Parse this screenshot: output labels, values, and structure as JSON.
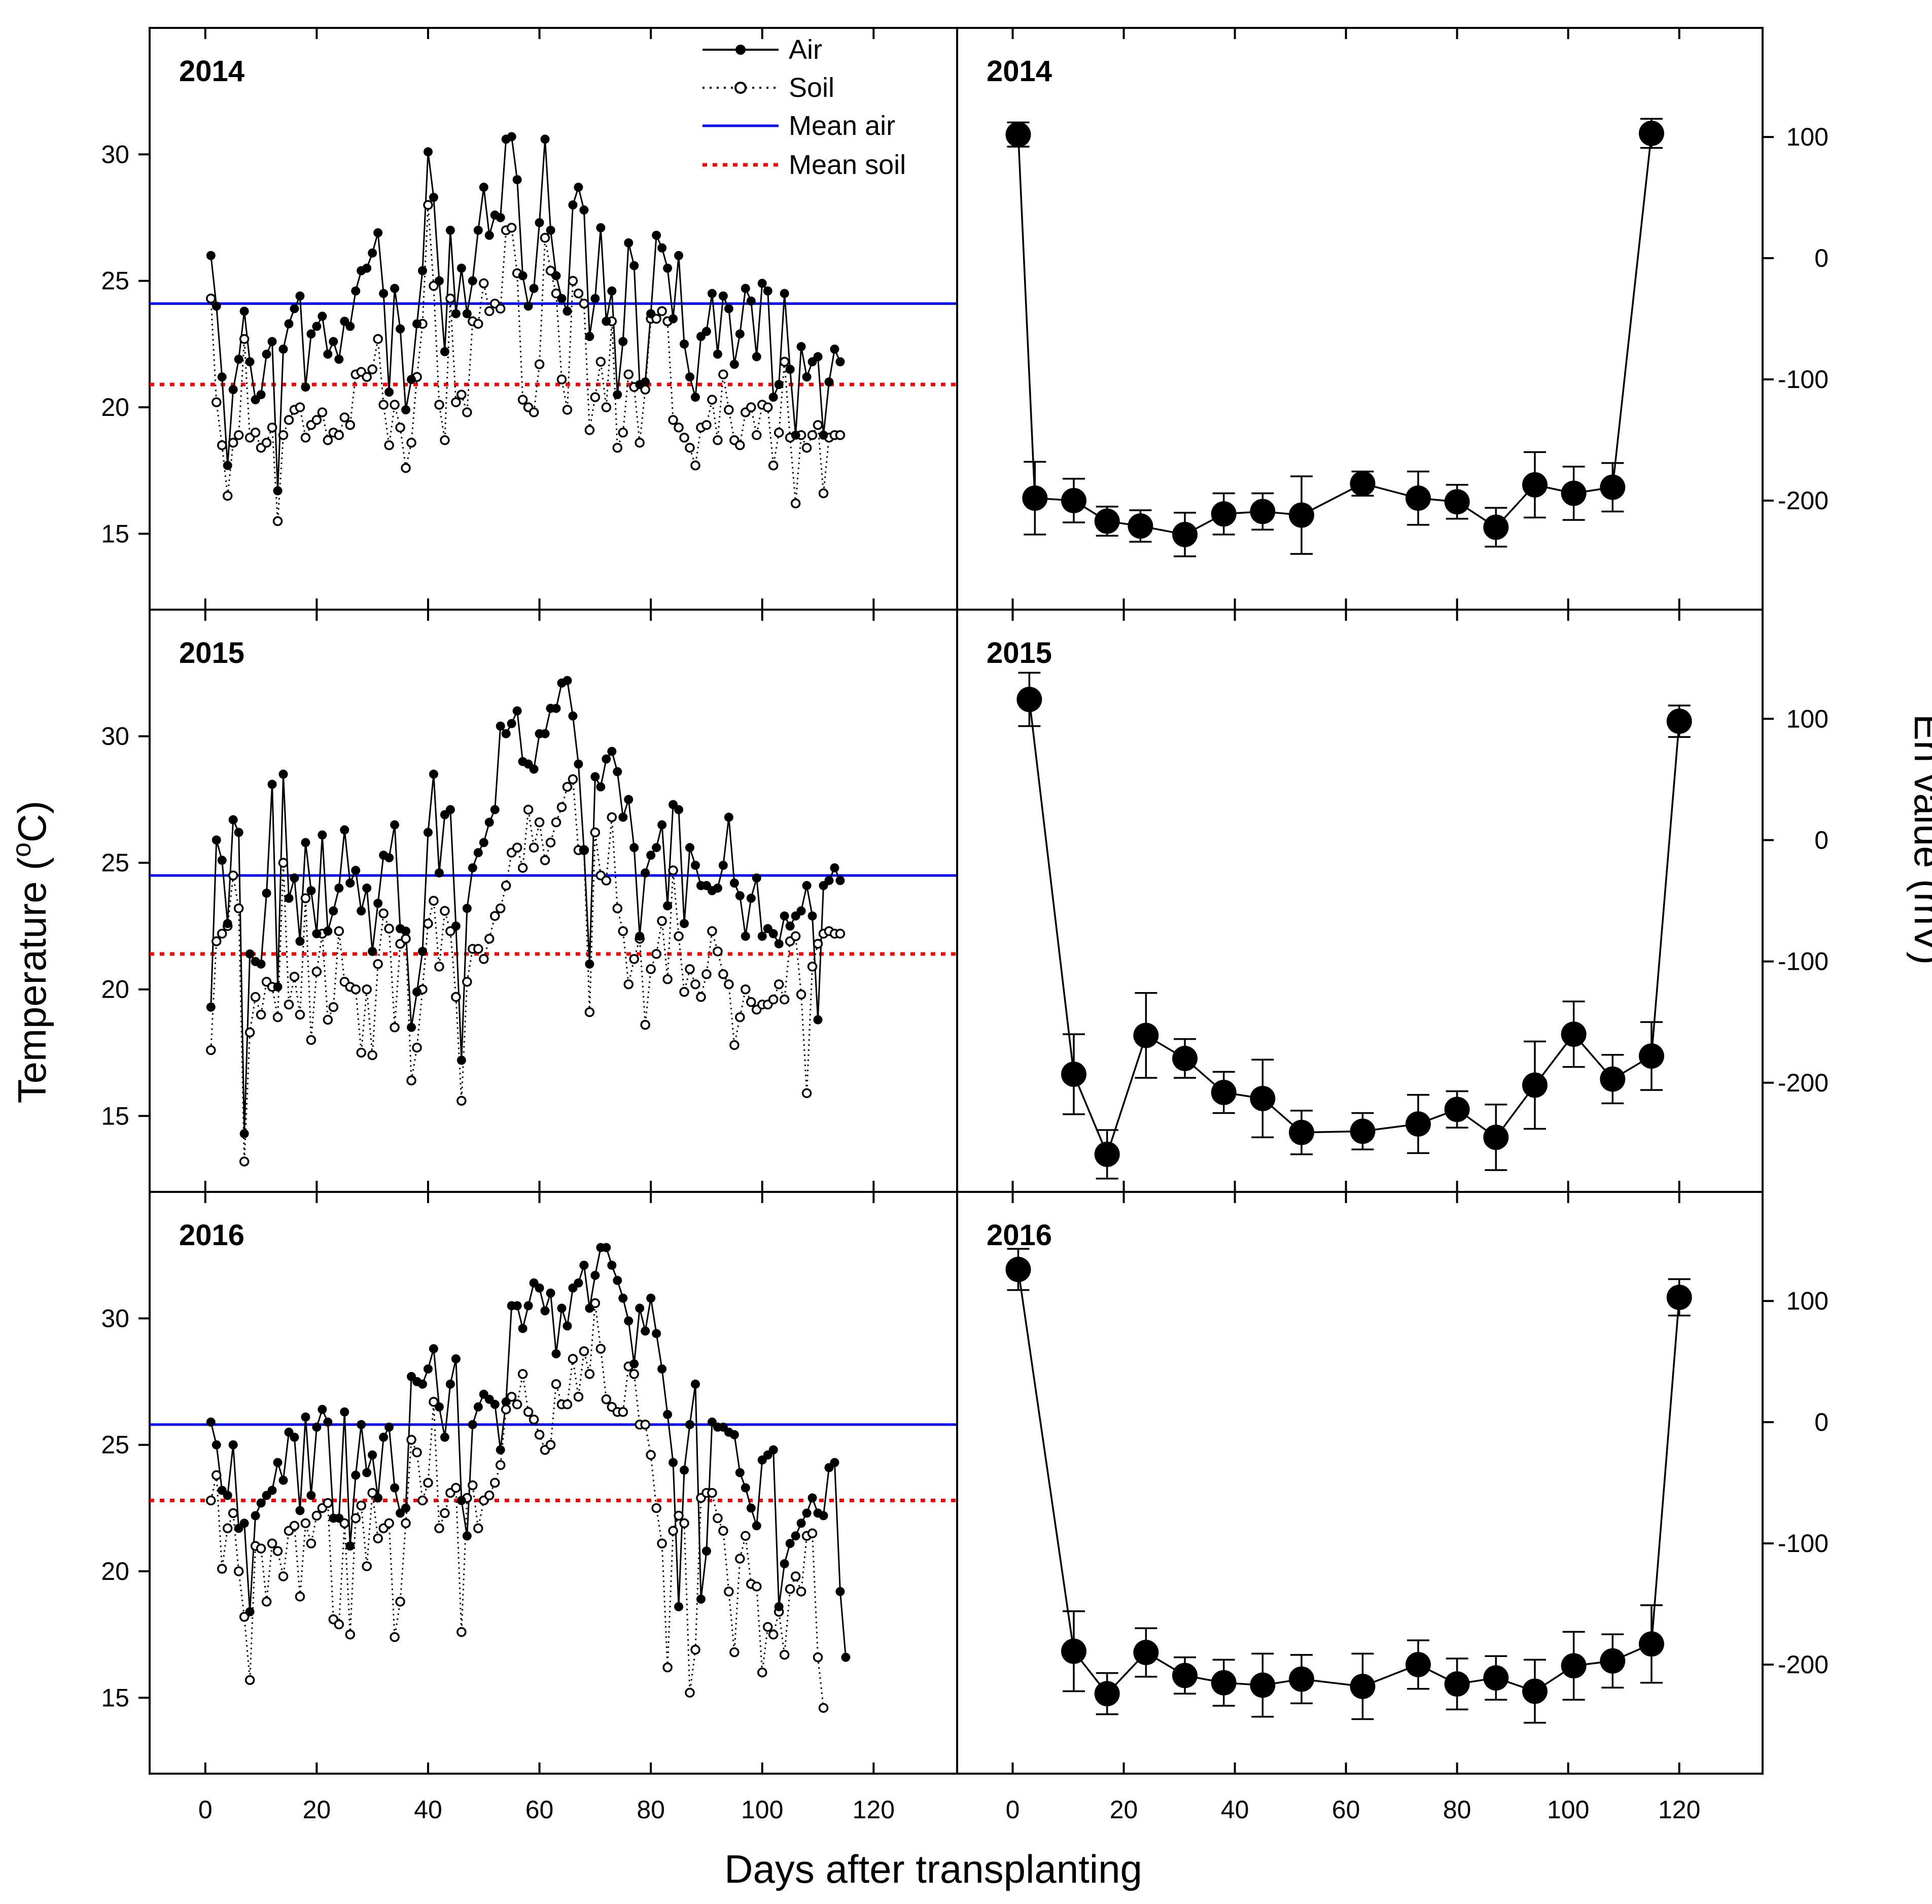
{
  "figure": {
    "x_axis_title": "Days after transplanting",
    "y_left_title": "Temperature (",
    "y_left_title_degree": "o",
    "y_left_title_unit": "C)",
    "y_right_title": "Eh value (mV)"
  },
  "legend": {
    "air": "Air",
    "soil": "Soil",
    "mean_air": "Mean air",
    "mean_soil": "Mean soil"
  },
  "colors": {
    "mean_air": "#0000ff",
    "mean_soil": "#ff0000",
    "series": "#000000"
  },
  "chart_data": [
    {
      "type": "line",
      "panel": "temperature-2014",
      "year_label": "2014",
      "xlim": [
        -10,
        135
      ],
      "ylim": [
        12,
        35
      ],
      "xticks": [
        0,
        20,
        40,
        60,
        80,
        100,
        120
      ],
      "yticks": [
        15,
        20,
        25,
        30
      ],
      "mean_air": 24.1,
      "mean_soil": 20.9,
      "air": [
        26.0,
        24.0,
        21.2,
        17.7,
        20.7,
        21.9,
        23.8,
        21.8,
        20.3,
        20.5,
        22.1,
        22.6,
        16.7,
        22.3,
        23.3,
        23.9,
        24.4,
        20.8,
        22.9,
        23.2,
        23.6,
        22.1,
        22.6,
        21.9,
        23.4,
        23.2,
        24.6,
        25.4,
        25.5,
        26.1,
        26.9,
        24.5,
        20.6,
        24.7,
        23.1,
        19.9,
        21.1,
        23.3,
        25.4,
        30.1,
        28.3,
        25.0,
        22.2,
        27.0,
        23.7,
        25.5,
        23.7,
        25.0,
        27.0,
        28.7,
        26.8,
        27.6,
        27.5,
        30.6,
        30.7,
        29.0,
        25.2,
        24.0,
        24.7,
        27.3,
        30.6,
        27.0,
        25.2,
        24.3,
        23.8,
        28.0,
        28.7,
        27.8,
        22.8,
        24.3,
        27.1,
        23.4,
        24.6,
        20.5,
        22.6,
        26.5,
        25.6,
        20.9,
        21.0,
        23.7,
        26.8,
        26.3,
        25.5,
        23.5,
        26.0,
        22.5,
        21.2,
        20.4,
        22.8,
        23.0,
        24.5,
        22.1,
        24.4,
        23.9,
        21.7,
        22.9,
        24.7,
        24.2,
        22.0,
        24.9,
        24.6,
        20.4,
        20.9,
        24.5,
        21.5,
        18.9,
        22.4,
        21.2,
        21.8,
        22.0,
        18.9,
        21.0,
        22.3,
        21.8
      ],
      "soil": [
        24.3,
        20.2,
        18.5,
        16.5,
        18.6,
        18.9,
        22.7,
        18.8,
        19.0,
        18.4,
        18.6,
        19.2,
        15.5,
        18.9,
        19.5,
        19.9,
        20.0,
        18.8,
        19.3,
        19.5,
        19.8,
        18.7,
        19.0,
        18.9,
        19.6,
        19.3,
        21.3,
        21.4,
        21.2,
        21.5,
        22.7,
        20.1,
        18.5,
        20.1,
        19.2,
        17.6,
        18.6,
        21.2,
        23.3,
        28.0,
        24.8,
        20.1,
        18.7,
        24.3,
        20.2,
        20.5,
        19.8,
        23.4,
        23.3,
        24.9,
        23.8,
        24.1,
        23.9,
        27.0,
        27.1,
        25.3,
        20.3,
        20.0,
        19.8,
        21.7,
        26.7,
        25.4,
        24.5,
        21.1,
        19.9,
        25.0,
        24.5,
        24.1,
        19.1,
        20.4,
        21.8,
        20.0,
        23.4,
        18.4,
        19.0,
        21.3,
        20.8,
        18.6,
        20.7,
        23.5,
        23.5,
        23.8,
        23.4,
        19.5,
        19.2,
        18.8,
        18.4,
        17.7,
        19.2,
        19.3,
        20.3,
        18.7,
        21.3,
        19.9,
        18.7,
        18.5,
        19.8,
        20.0,
        18.9,
        20.1,
        20.0,
        17.7,
        19.0,
        21.8,
        18.8,
        16.2,
        18.9,
        18.4,
        18.9,
        19.3,
        16.6,
        18.8,
        18.9,
        18.9
      ]
    },
    {
      "type": "line",
      "panel": "temperature-2015",
      "year_label": "2015",
      "xlim": [
        -10,
        135
      ],
      "ylim": [
        12,
        35
      ],
      "xticks": [
        0,
        20,
        40,
        60,
        80,
        100,
        120
      ],
      "yticks": [
        15,
        20,
        25,
        30
      ],
      "mean_air": 24.5,
      "mean_soil": 21.4,
      "air": [
        19.3,
        25.9,
        25.1,
        22.6,
        26.7,
        26.2,
        14.3,
        21.4,
        21.1,
        21.0,
        23.8,
        28.1,
        20.1,
        28.5,
        23.6,
        24.4,
        21.9,
        25.8,
        23.9,
        22.2,
        26.1,
        22.3,
        23.1,
        24.0,
        26.3,
        24.2,
        24.7,
        23.1,
        24.0,
        21.5,
        23.4,
        25.3,
        25.2,
        26.5,
        22.4,
        22.3,
        18.5,
        19.9,
        21.5,
        26.2,
        28.5,
        24.6,
        26.9,
        27.1,
        22.5,
        17.2,
        23.2,
        24.8,
        25.4,
        25.8,
        26.6,
        27.1,
        30.4,
        30.1,
        30.5,
        31.0,
        29.0,
        28.9,
        28.7,
        30.1,
        30.1,
        31.1,
        31.1,
        32.1,
        32.2,
        30.8,
        28.9,
        25.5,
        21.0,
        28.4,
        28.0,
        29.1,
        29.4,
        28.6,
        26.8,
        27.5,
        25.6,
        22.1,
        24.6,
        25.3,
        25.6,
        26.5,
        23.3,
        27.3,
        27.1,
        22.6,
        25.6,
        24.9,
        24.1,
        24.1,
        23.9,
        24.0,
        24.9,
        26.8,
        24.2,
        23.7,
        22.1,
        23.6,
        24.4,
        22.1,
        22.4,
        22.2,
        21.8,
        22.9,
        22.5,
        22.9,
        23.1,
        24.1,
        22.9,
        18.8,
        24.1,
        24.3,
        24.8,
        24.3
      ],
      "soil": [
        17.6,
        21.9,
        22.2,
        22.5,
        24.5,
        23.2,
        13.2,
        18.3,
        19.7,
        19.0,
        20.3,
        20.1,
        18.9,
        25.0,
        19.4,
        20.5,
        19.0,
        23.6,
        18.0,
        20.7,
        22.2,
        18.8,
        19.3,
        22.3,
        20.3,
        20.1,
        20.0,
        17.5,
        20.0,
        17.4,
        21.0,
        23.0,
        22.4,
        18.5,
        21.8,
        22.0,
        16.4,
        17.7,
        20.0,
        22.6,
        23.5,
        20.9,
        23.1,
        22.3,
        19.7,
        15.6,
        20.3,
        21.6,
        21.6,
        21.2,
        22.0,
        22.9,
        23.2,
        24.1,
        25.4,
        25.6,
        24.8,
        27.1,
        25.6,
        26.6,
        25.1,
        25.8,
        26.6,
        27.2,
        28.0,
        28.3,
        25.5,
        25.5,
        19.1,
        26.2,
        24.5,
        24.3,
        26.8,
        23.2,
        22.3,
        20.2,
        21.2,
        22.0,
        18.6,
        20.8,
        21.4,
        22.7,
        20.4,
        24.7,
        22.1,
        19.9,
        20.8,
        20.2,
        19.7,
        20.6,
        22.3,
        21.5,
        20.6,
        20.2,
        17.8,
        18.9,
        20.0,
        19.5,
        19.2,
        19.4,
        19.4,
        19.6,
        20.2,
        19.6,
        21.9,
        22.1,
        19.8,
        15.9,
        20.9,
        21.8,
        22.2,
        22.3,
        22.2,
        22.2
      ],
      "xoffset": 0
    },
    {
      "type": "line",
      "panel": "temperature-2016",
      "year_label": "2016",
      "xlim": [
        -10,
        135
      ],
      "ylim": [
        12,
        35
      ],
      "xticks": [
        0,
        20,
        40,
        60,
        80,
        100,
        120
      ],
      "yticks": [
        15,
        20,
        25,
        30
      ],
      "mean_air": 25.8,
      "mean_soil": 22.8,
      "air": [
        25.9,
        25.0,
        23.2,
        23.0,
        25.0,
        21.7,
        21.9,
        18.4,
        22.2,
        22.7,
        23.0,
        23.2,
        24.3,
        23.6,
        25.5,
        25.3,
        22.4,
        26.1,
        23.0,
        25.7,
        26.4,
        25.9,
        22.1,
        22.1,
        26.3,
        21.0,
        23.8,
        25.8,
        23.9,
        24.6,
        22.9,
        25.3,
        25.7,
        23.3,
        22.3,
        22.5,
        27.7,
        27.5,
        27.4,
        28.0,
        28.8,
        26.5,
        25.3,
        27.4,
        28.4,
        22.8,
        21.4,
        25.8,
        26.5,
        27.0,
        26.8,
        26.6,
        24.8,
        26.7,
        30.5,
        30.5,
        29.6,
        30.5,
        31.4,
        31.2,
        30.3,
        31.0,
        28.6,
        30.4,
        29.7,
        31.2,
        31.4,
        32.1,
        30.4,
        31.7,
        32.8,
        32.8,
        32.1,
        31.5,
        30.8,
        29.9,
        28.2,
        30.4,
        29.5,
        30.8,
        29.4,
        28.0,
        26.2,
        24.3,
        18.6,
        24.0,
        25.8,
        27.4,
        18.9,
        20.8,
        25.9,
        25.7,
        25.7,
        25.5,
        25.4,
        23.9,
        23.3,
        22.5,
        21.8,
        24.4,
        24.6,
        24.8,
        18.6,
        20.3,
        21.1,
        21.4,
        21.9,
        22.3,
        22.9,
        22.3,
        22.2,
        24.1,
        24.3,
        19.2,
        16.6
      ],
      "soil": [
        22.8,
        23.8,
        20.1,
        21.7,
        22.3,
        20.0,
        18.2,
        15.7,
        21.0,
        20.9,
        18.8,
        21.1,
        20.8,
        19.8,
        21.6,
        21.8,
        19.0,
        21.9,
        21.1,
        22.2,
        22.5,
        22.7,
        18.1,
        17.9,
        21.9,
        17.5,
        22.1,
        22.6,
        20.2,
        23.1,
        21.3,
        21.7,
        21.9,
        17.4,
        18.8,
        21.9,
        25.2,
        24.7,
        22.8,
        23.5,
        26.7,
        21.7,
        22.3,
        23.1,
        23.3,
        17.6,
        22.9,
        23.4,
        21.7,
        22.8,
        23.0,
        23.5,
        24.2,
        26.4,
        26.9,
        26.6,
        27.8,
        26.3,
        26.0,
        25.4,
        24.8,
        25.0,
        27.4,
        26.6,
        26.6,
        28.4,
        26.9,
        28.7,
        27.8,
        30.6,
        28.8,
        26.8,
        26.5,
        26.3,
        26.3,
        28.1,
        27.8,
        25.8,
        25.8,
        24.6,
        22.5,
        21.1,
        16.2,
        21.6,
        22.2,
        21.9,
        15.2,
        16.9,
        22.9,
        23.1,
        23.1,
        22.1,
        21.6,
        19.2,
        16.8,
        20.5,
        21.4,
        19.5,
        19.4,
        16.0,
        17.8,
        17.5,
        18.4,
        16.7,
        19.3,
        19.8,
        19.2,
        21.4,
        21.5,
        16.6,
        14.6
      ],
      "xoffset": 0
    },
    {
      "type": "scatter",
      "panel": "eh-2014",
      "year_label": "2014",
      "xlim": [
        -10,
        135
      ],
      "ylim": [
        -290,
        190
      ],
      "xticks": [
        0,
        20,
        40,
        60,
        80,
        100,
        120
      ],
      "yticks": [
        -200,
        -100,
        0,
        100
      ],
      "x": [
        1,
        4,
        11,
        17,
        23,
        31,
        38,
        45,
        52,
        63,
        73,
        80,
        87,
        94,
        101,
        108,
        115
      ],
      "y": [
        102,
        -198,
        -200,
        -217,
        -221,
        -228,
        -211,
        -209,
        -212,
        -186,
        -198,
        -201,
        -222,
        -187,
        -194,
        -189,
        103
      ],
      "err": [
        10,
        30,
        18,
        12,
        13,
        18,
        17,
        15,
        32,
        10,
        22,
        14,
        16,
        27,
        22,
        20,
        12
      ]
    },
    {
      "type": "scatter",
      "panel": "eh-2015",
      "year_label": "2015",
      "xlim": [
        -10,
        135
      ],
      "ylim": [
        -290,
        190
      ],
      "xticks": [
        0,
        20,
        40,
        60,
        80,
        100,
        120
      ],
      "yticks": [
        -200,
        -100,
        0,
        100
      ],
      "x": [
        3,
        11,
        17,
        24,
        31,
        38,
        45,
        52,
        63,
        73,
        80,
        87,
        94,
        101,
        108,
        115,
        120
      ],
      "y": [
        116,
        -193,
        -259,
        -161,
        -180,
        -208,
        -213,
        -241,
        -240,
        -234,
        -222,
        -245,
        -202,
        -160,
        -197,
        -178,
        98
      ],
      "err": [
        22,
        33,
        20,
        35,
        16,
        17,
        32,
        18,
        15,
        24,
        15,
        27,
        36,
        27,
        20,
        28,
        13
      ]
    },
    {
      "type": "scatter",
      "panel": "eh-2016",
      "year_label": "2016",
      "xlim": [
        -10,
        135
      ],
      "ylim": [
        -290,
        190
      ],
      "xticks": [
        0,
        20,
        40,
        60,
        80,
        100,
        120
      ],
      "yticks": [
        -200,
        -100,
        0,
        100
      ],
      "x": [
        1,
        11,
        17,
        24,
        31,
        38,
        45,
        52,
        63,
        73,
        80,
        87,
        94,
        101,
        108,
        115,
        120
      ],
      "y": [
        126,
        -189,
        -224,
        -190,
        -209,
        -215,
        -217,
        -212,
        -218,
        -200,
        -216,
        -211,
        -222,
        -201,
        -197,
        -183,
        103
      ],
      "err": [
        17,
        33,
        17,
        20,
        15,
        19,
        26,
        20,
        27,
        20,
        21,
        18,
        26,
        28,
        22,
        32,
        15
      ]
    }
  ]
}
